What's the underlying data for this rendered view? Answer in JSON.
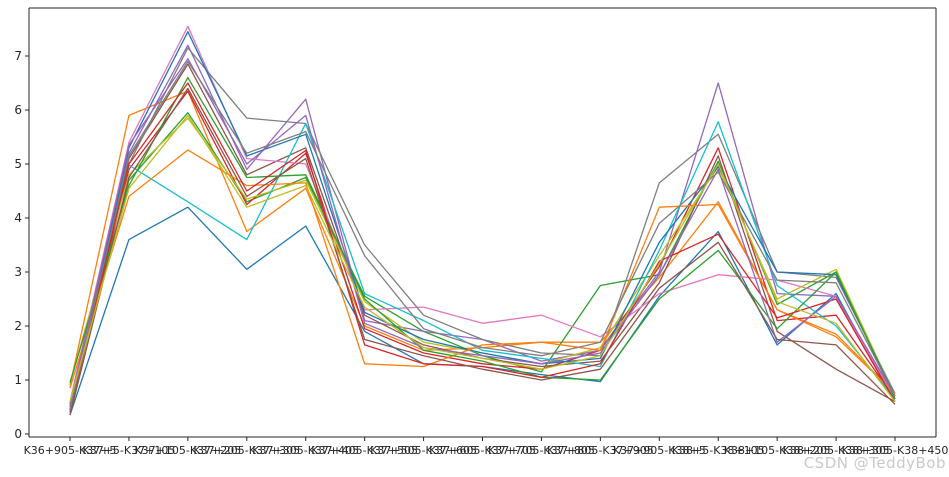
{
  "watermark": "CSDN @TeddyBob",
  "chart_data": {
    "type": "line",
    "title": "",
    "xlabel": "",
    "ylabel": "",
    "grid": false,
    "legend": "none",
    "ylim": [
      -0.06,
      7.9
    ],
    "y_ticks": [
      "0",
      "1",
      "2",
      "3",
      "4",
      "5",
      "6",
      "7"
    ],
    "x_tick_labels": [
      "K36+905-K37+5",
      "K37+5-K37+105",
      "K37+105-K37+205",
      "K37+205-K37+305",
      "K37+305-K37+405",
      "K37+405-K37+505",
      "K37+505-K37+605",
      "K37+605-K37+705",
      "K37+705-K37+805",
      "K37+805-K37+905",
      "K37+905-K38+5",
      "K38+5-K38+105",
      "K38+105-K38+205",
      "K38+205-K38+305",
      "K38+305-K38+450"
    ],
    "palette_note": "matplotlib tab10 cycle, repeated",
    "series": [
      {
        "name": "series-1",
        "color": "#1f77b4",
        "values": [
          0.35,
          3.6,
          4.2,
          3.05,
          3.85,
          1.9,
          1.3,
          1.25,
          1.1,
          0.97,
          2.55,
          3.75,
          1.65,
          2.6,
          0.6
        ]
      },
      {
        "name": "series-2",
        "color": "#ff7f0e",
        "values": [
          0.9,
          5.9,
          6.35,
          3.75,
          4.55,
          2.0,
          1.55,
          1.6,
          1.7,
          1.7,
          2.9,
          4.3,
          2.3,
          1.85,
          0.75
        ]
      },
      {
        "name": "series-3",
        "color": "#2ca02c",
        "values": [
          0.55,
          4.7,
          5.95,
          4.3,
          4.75,
          2.55,
          1.9,
          1.45,
          1.15,
          2.75,
          2.95,
          5.05,
          2.4,
          3.0,
          0.7
        ]
      },
      {
        "name": "series-4",
        "color": "#d62728",
        "values": [
          0.45,
          4.9,
          6.35,
          4.25,
          5.2,
          1.95,
          1.5,
          1.3,
          1.2,
          1.55,
          3.1,
          5.3,
          2.1,
          2.2,
          0.65
        ]
      },
      {
        "name": "series-5",
        "color": "#9467bd",
        "values": [
          0.5,
          5.2,
          7.2,
          4.9,
          6.2,
          2.1,
          1.9,
          1.75,
          1.35,
          1.55,
          3.0,
          6.5,
          2.6,
          2.55,
          0.7
        ]
      },
      {
        "name": "series-6",
        "color": "#8c564b",
        "values": [
          0.4,
          5.1,
          6.85,
          4.8,
          5.3,
          2.2,
          1.65,
          1.4,
          1.25,
          1.35,
          2.8,
          5.15,
          1.9,
          1.2,
          0.6
        ]
      },
      {
        "name": "series-7",
        "color": "#e377c2",
        "values": [
          0.6,
          5.4,
          7.55,
          5.1,
          5.0,
          2.3,
          2.35,
          2.05,
          2.2,
          1.8,
          2.6,
          2.95,
          2.85,
          2.55,
          0.65
        ]
      },
      {
        "name": "series-8",
        "color": "#7f7f7f",
        "values": [
          0.5,
          5.0,
          7.15,
          5.85,
          5.75,
          3.5,
          2.2,
          1.75,
          1.5,
          1.45,
          4.65,
          5.55,
          3.0,
          2.9,
          0.75
        ]
      },
      {
        "name": "series-9",
        "color": "#bcbd22",
        "values": [
          0.95,
          4.8,
          5.85,
          4.35,
          4.7,
          2.45,
          1.7,
          1.5,
          1.3,
          1.6,
          3.3,
          4.95,
          2.5,
          3.05,
          0.7
        ]
      },
      {
        "name": "series-10",
        "color": "#17becf",
        "values": [
          0.55,
          4.98,
          4.3,
          3.6,
          5.75,
          2.6,
          2.1,
          1.55,
          1.4,
          1.25,
          3.4,
          5.78,
          2.75,
          2.0,
          0.65
        ]
      },
      {
        "name": "series-11",
        "color": "#1f77b4",
        "values": [
          0.4,
          5.3,
          7.45,
          5.15,
          5.55,
          2.25,
          1.75,
          1.5,
          1.3,
          1.4,
          3.55,
          4.95,
          3.0,
          2.95,
          0.7
        ]
      },
      {
        "name": "series-12",
        "color": "#ff7f0e",
        "values": [
          0.85,
          4.4,
          5.26,
          4.6,
          4.65,
          1.3,
          1.25,
          1.65,
          1.7,
          1.55,
          4.2,
          4.25,
          2.3,
          1.8,
          0.75
        ]
      },
      {
        "name": "series-13",
        "color": "#2ca02c",
        "values": [
          0.95,
          4.6,
          6.6,
          4.75,
          4.8,
          2.5,
          1.55,
          1.35,
          1.05,
          1.0,
          2.5,
          3.4,
          1.95,
          3.0,
          0.65
        ]
      },
      {
        "name": "series-14",
        "color": "#d62728",
        "values": [
          0.45,
          5.0,
          6.5,
          4.5,
          5.25,
          1.65,
          1.3,
          1.25,
          1.05,
          1.3,
          3.2,
          3.7,
          2.15,
          2.5,
          0.6
        ]
      },
      {
        "name": "series-15",
        "color": "#9467bd",
        "values": [
          0.55,
          5.35,
          6.95,
          5.0,
          5.9,
          2.05,
          1.6,
          1.45,
          1.3,
          1.5,
          2.95,
          4.9,
          1.7,
          2.55,
          0.7
        ]
      },
      {
        "name": "series-16",
        "color": "#8c564b",
        "values": [
          0.35,
          4.75,
          6.4,
          4.4,
          5.1,
          1.75,
          1.45,
          1.2,
          1.0,
          1.2,
          2.7,
          3.55,
          1.75,
          1.65,
          0.55
        ]
      },
      {
        "name": "series-17",
        "color": "#7f7f7f",
        "values": [
          0.45,
          5.15,
          6.9,
          5.2,
          5.6,
          3.3,
          1.95,
          1.6,
          1.45,
          1.7,
          3.9,
          4.85,
          2.85,
          2.8,
          0.7
        ]
      },
      {
        "name": "series-18",
        "color": "#bcbd22",
        "values": [
          0.6,
          4.55,
          5.9,
          4.2,
          4.6,
          2.35,
          1.6,
          1.4,
          1.2,
          1.45,
          3.15,
          5.0,
          2.45,
          2.05,
          0.6
        ]
      }
    ]
  }
}
